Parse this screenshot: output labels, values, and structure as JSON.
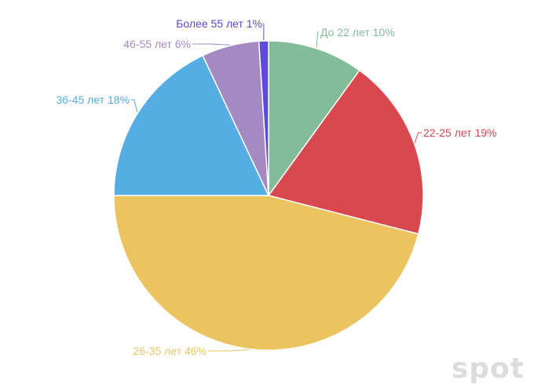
{
  "chart_data": {
    "type": "pie",
    "slices": [
      {
        "label": "До 22 лет 10%",
        "category": "До 22 лет",
        "value": 10,
        "color": "#82bc98"
      },
      {
        "label": "22-25 лет 19%",
        "category": "22-25 лет",
        "value": 19,
        "color": "#d9474f"
      },
      {
        "label": "26-35 лет 46%",
        "category": "26-35 лет",
        "value": 46,
        "color": "#ecc45f"
      },
      {
        "label": "36-45 лет 18%",
        "category": "36-45 лет",
        "value": 18,
        "color": "#55ade3"
      },
      {
        "label": "46-55 лет 6%",
        "category": "46-55 лет",
        "value": 6,
        "color": "#a589c3"
      },
      {
        "label": "Более 55 лет 1%",
        "category": "Более 55 лет",
        "value": 1,
        "color": "#5a4bdc"
      }
    ],
    "start": "12 o'clock",
    "direction": "clockwise",
    "legend": "none",
    "labels": "outside"
  },
  "watermark": "spot"
}
